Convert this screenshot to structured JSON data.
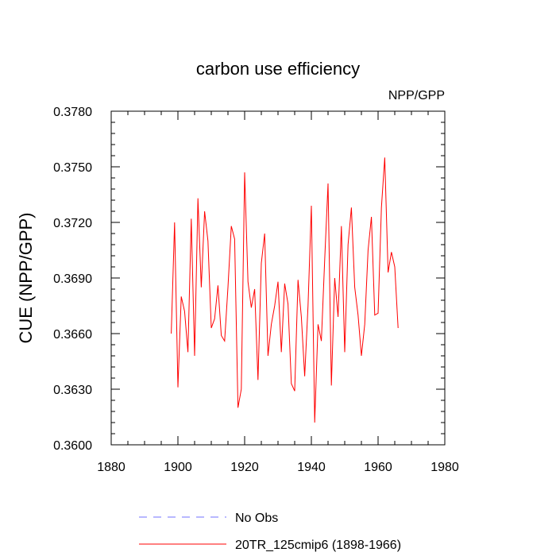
{
  "chart_data": {
    "type": "line",
    "title": "carbon use efficiency",
    "subtitle": "NPP/GPP",
    "xlabel": "",
    "ylabel": "CUE  (NPP/GPP)",
    "xlim": [
      1880,
      1980
    ],
    "ylim": [
      0.36,
      0.378
    ],
    "x_ticks": [
      "1880",
      "1900",
      "1920",
      "1940",
      "1960",
      "1980"
    ],
    "y_ticks": [
      "0.3600",
      "0.3630",
      "0.3660",
      "0.3690",
      "0.3720",
      "0.3750",
      "0.3780"
    ],
    "grid": false,
    "legend_position": "bottom",
    "series": [
      {
        "name": "No Obs",
        "color": "#7070ff",
        "dash": "dashed",
        "x": [],
        "y": []
      },
      {
        "name": "20TR_125cmip6 (1898-1966)",
        "color": "#ff0000",
        "dash": "solid",
        "x": [
          1898,
          1899,
          1900,
          1901,
          1902,
          1903,
          1904,
          1905,
          1906,
          1907,
          1908,
          1909,
          1910,
          1911,
          1912,
          1913,
          1914,
          1915,
          1916,
          1917,
          1918,
          1919,
          1920,
          1921,
          1922,
          1923,
          1924,
          1925,
          1926,
          1927,
          1928,
          1929,
          1930,
          1931,
          1932,
          1933,
          1934,
          1935,
          1936,
          1937,
          1938,
          1939,
          1940,
          1941,
          1942,
          1943,
          1944,
          1945,
          1946,
          1947,
          1948,
          1949,
          1950,
          1951,
          1952,
          1953,
          1954,
          1955,
          1956,
          1957,
          1958,
          1959,
          1960,
          1961,
          1962,
          1963,
          1964,
          1965,
          1966
        ],
        "y": [
          0.366,
          0.372,
          0.3631,
          0.368,
          0.3672,
          0.365,
          0.3722,
          0.3648,
          0.3733,
          0.3685,
          0.3726,
          0.371,
          0.3663,
          0.3668,
          0.3686,
          0.3659,
          0.3656,
          0.3685,
          0.3718,
          0.3711,
          0.362,
          0.363,
          0.3747,
          0.3688,
          0.3674,
          0.3684,
          0.3635,
          0.3698,
          0.3714,
          0.3648,
          0.3665,
          0.3675,
          0.3688,
          0.365,
          0.3687,
          0.3676,
          0.3633,
          0.3629,
          0.3689,
          0.3669,
          0.3637,
          0.3675,
          0.3729,
          0.3612,
          0.3665,
          0.3656,
          0.37,
          0.3741,
          0.3632,
          0.369,
          0.3669,
          0.3718,
          0.365,
          0.3708,
          0.3728,
          0.3685,
          0.367,
          0.3648,
          0.3665,
          0.3705,
          0.3723,
          0.367,
          0.3671,
          0.3728,
          0.3755,
          0.3693,
          0.3704,
          0.3696,
          0.3663
        ]
      }
    ]
  }
}
